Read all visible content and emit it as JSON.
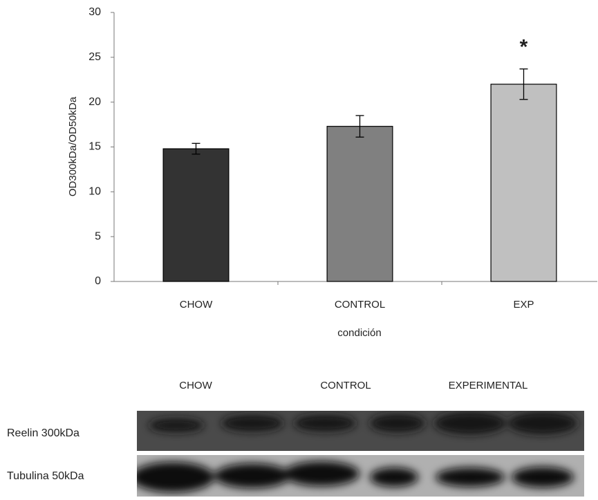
{
  "chart_data": {
    "type": "bar",
    "y_label": "OD300kDa/OD50kDa",
    "x_label": "condición",
    "categories": [
      "CHOW",
      "CONTROL",
      "EXP"
    ],
    "values": [
      14.8,
      17.3,
      22.0
    ],
    "errors": [
      0.6,
      1.2,
      1.7
    ],
    "colors": [
      "#333333",
      "#808080",
      "#c0c0c0"
    ],
    "ylim": [
      0,
      30
    ],
    "yticks": [
      0,
      5,
      10,
      15,
      20,
      25,
      30
    ],
    "grid": false,
    "annotations": [
      {
        "x": "EXP",
        "text": "*"
      }
    ]
  },
  "blot": {
    "lanes": [
      "CHOW",
      "CONTROL",
      "EXPERIMENTAL"
    ],
    "rows": [
      "Reelin 300kDa",
      "Tubulina 50kDa"
    ]
  }
}
